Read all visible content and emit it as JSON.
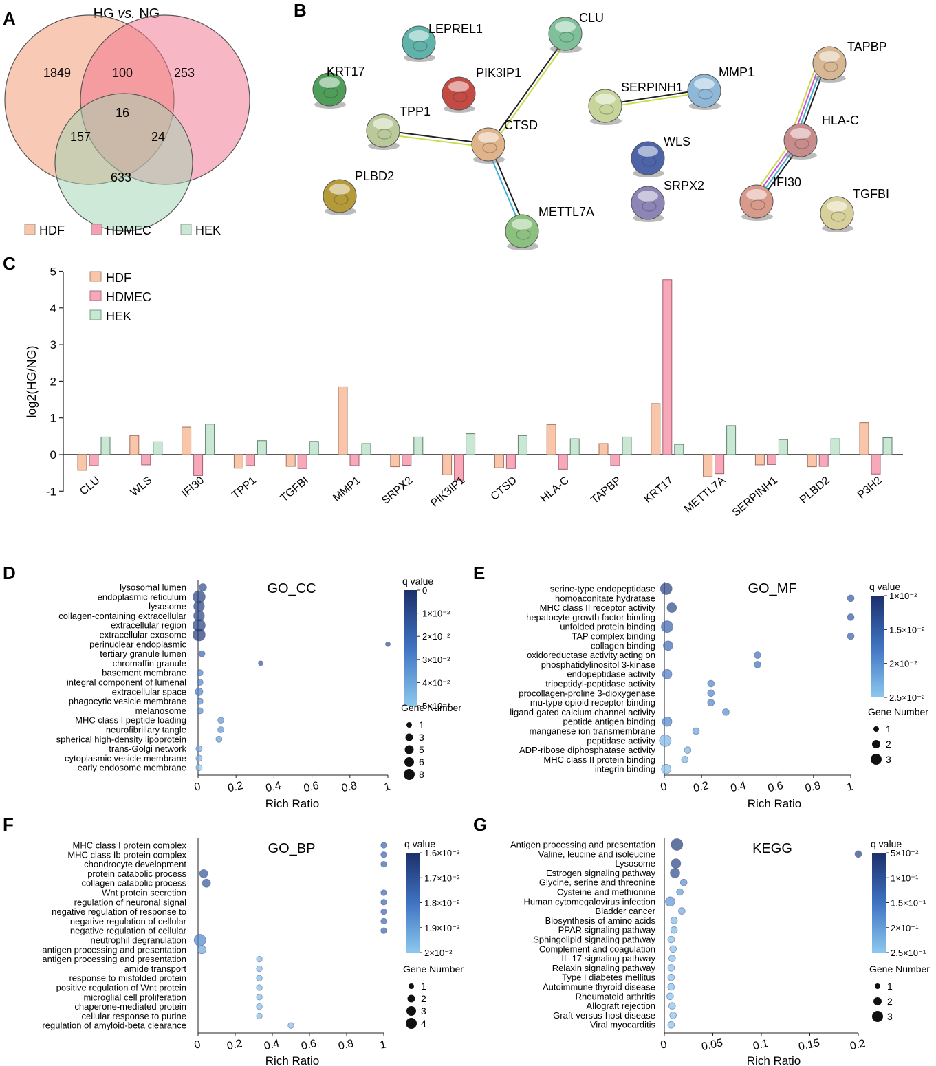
{
  "panels": {
    "A": {
      "label": "A",
      "title_prefix": "HG ",
      "title_italic": "vs.",
      "title_suffix": " NG",
      "regions": {
        "hdf_only": "1849",
        "hdf_hdmec": "100",
        "hdmec_only": "253",
        "all_three": "16",
        "hdf_hek": "157",
        "hdmec_hek": "24",
        "hek_only": "633"
      },
      "sets": [
        {
          "name": "HDF",
          "color": "#f4a582"
        },
        {
          "name": "HDMEC",
          "color": "#f28ba0"
        },
        {
          "name": "HEK",
          "color": "#9fd4b3"
        }
      ]
    },
    "B": {
      "label": "B",
      "nodes": [
        {
          "id": "LEPREL1",
          "color": "#5fb3a8"
        },
        {
          "id": "CLU",
          "color": "#7fc09a"
        },
        {
          "id": "KRT17",
          "color": "#4e9e5a"
        },
        {
          "id": "PIK3IP1",
          "color": "#c44b44"
        },
        {
          "id": "TPP1",
          "color": "#b9c99a"
        },
        {
          "id": "CTSD",
          "color": "#e0b48a"
        },
        {
          "id": "PLBD2",
          "color": "#b59a3a"
        },
        {
          "id": "METTL7A",
          "color": "#8cc07e"
        },
        {
          "id": "SERPINH1",
          "color": "#c7d49a"
        },
        {
          "id": "MMP1",
          "color": "#8fb8d8"
        },
        {
          "id": "WLS",
          "color": "#4d64a8"
        },
        {
          "id": "SRPX2",
          "color": "#8c85b5"
        },
        {
          "id": "TAPBP",
          "color": "#d8b892"
        },
        {
          "id": "HLA-C",
          "color": "#c98c8c"
        },
        {
          "id": "IFI30",
          "color": "#d89a8a"
        },
        {
          "id": "TGFBI",
          "color": "#d8d09a"
        }
      ]
    },
    "C": {
      "label": "C",
      "ylabel": "log2(HG/NG)",
      "yticks": [
        "5",
        "4",
        "3",
        "2",
        "1",
        "0",
        "-1"
      ]
    },
    "D": {
      "label": "D",
      "title": "GO_CC",
      "xlabel": "Rich Ratio",
      "legend": {
        "q_title": "q value",
        "q_ticks": [
          "0",
          "1×10⁻²",
          "2×10⁻²",
          "3×10⁻²",
          "4×10⁻²",
          "5×10⁻²"
        ],
        "gene_title": "Gene Number",
        "gene_ticks": [
          "1",
          "3",
          "5",
          "6",
          "8"
        ]
      }
    },
    "E": {
      "label": "E",
      "title": "GO_MF",
      "xlabel": "Rich Ratio",
      "legend": {
        "q_title": "q value",
        "q_ticks": [
          "1×10⁻²",
          "1.5×10⁻²",
          "2×10⁻²",
          "2.5×10⁻²"
        ],
        "gene_title": "Gene Number",
        "gene_ticks": [
          "1",
          "2",
          "3"
        ]
      }
    },
    "F": {
      "label": "F",
      "title": "GO_BP",
      "xlabel": "Rich Ratio",
      "legend": {
        "q_title": "q value",
        "q_ticks": [
          "1.6×10⁻²",
          "1.7×10⁻²",
          "1.8×10⁻²",
          "1.9×10⁻²",
          "2×10⁻²"
        ],
        "gene_title": "Gene Number",
        "gene_ticks": [
          "1",
          "2",
          "3",
          "4"
        ]
      }
    },
    "G": {
      "label": "G",
      "title": "KEGG",
      "xlabel": "Rich Ratio",
      "legend": {
        "q_title": "q value",
        "q_ticks": [
          "5×10⁻²",
          "1×10⁻¹",
          "1.5×10⁻¹",
          "2×10⁻¹",
          "2.5×10⁻¹"
        ],
        "gene_title": "Gene Number",
        "gene_ticks": [
          "1",
          "2",
          "3"
        ]
      }
    }
  },
  "chart_data": [
    {
      "id": "C",
      "type": "bar",
      "title": "",
      "xlabel": "",
      "ylabel": "log2(HG/NG)",
      "ylim": [
        -1,
        5
      ],
      "categories": [
        "CLU",
        "WLS",
        "IFI30",
        "TPP1",
        "TGFBI",
        "MMP1",
        "SRPX2",
        "PIK3IP1",
        "CTSD",
        "HLA-C",
        "TAPBP",
        "KRT17",
        "METTL7A",
        "SERPINH1",
        "PLBD2",
        "P3H2"
      ],
      "series": [
        {
          "name": "HDF",
          "color": "#f9c6a9",
          "values": [
            -0.43,
            0.52,
            0.75,
            -0.37,
            -0.32,
            1.85,
            -0.33,
            -0.55,
            -0.36,
            0.82,
            0.3,
            1.39,
            -0.6,
            -0.28,
            -0.33,
            0.87
          ]
        },
        {
          "name": "HDMEC",
          "color": "#f7a9b9",
          "values": [
            -0.3,
            -0.28,
            -0.57,
            -0.3,
            -0.38,
            -0.3,
            -0.29,
            -0.7,
            -0.38,
            -0.4,
            -0.3,
            4.77,
            -0.52,
            -0.27,
            -0.32,
            -0.53
          ]
        },
        {
          "name": "HEK",
          "color": "#c8e8d3",
          "values": [
            0.48,
            0.35,
            0.83,
            0.38,
            0.36,
            0.3,
            0.48,
            0.57,
            0.52,
            0.43,
            0.48,
            0.28,
            0.79,
            0.41,
            0.43,
            0.46
          ]
        }
      ]
    },
    {
      "id": "D",
      "type": "scatter",
      "title": "GO_CC",
      "xlabel": "Rich Ratio",
      "xlim": [
        0,
        1
      ],
      "xticks": [
        "0",
        "0.2",
        "0.4",
        "0.6",
        "0.8",
        "1"
      ],
      "categories": [
        "lysosomal lumen",
        "endoplasmic reticulum",
        "lysosome",
        "collagen-containing extracellular",
        "extracellular region",
        "extracellular exosome",
        "perinuclear endoplasmic",
        "tertiary granule lumen",
        "chromaffin granule",
        "basement membrane",
        "integral component of lumenal",
        "extracellular space",
        "phagocytic vesicle membrane",
        "melanosome",
        "MHC class I peptide loading",
        "neurofibrillary tangle",
        "spherical high-density lipoprotein",
        "trans-Golgi network",
        "cytoplasmic vesicle membrane",
        "early endosome membrane"
      ],
      "x": [
        0.025,
        0.005,
        0.005,
        0.005,
        0.005,
        0.005,
        1.0,
        0.02,
        0.33,
        0.01,
        0.01,
        0.005,
        0.01,
        0.01,
        0.12,
        0.12,
        0.11,
        0.005,
        0.005,
        0.005
      ],
      "gene_number": [
        3,
        8,
        6,
        6,
        8,
        8,
        1,
        2,
        1,
        2,
        2,
        3,
        2,
        2,
        2,
        2,
        2,
        2,
        2,
        2
      ],
      "q_value": [
        0.01,
        0.005,
        0.005,
        0.006,
        0.005,
        0.003,
        0.012,
        0.02,
        0.015,
        0.03,
        0.03,
        0.03,
        0.033,
        0.033,
        0.035,
        0.035,
        0.038,
        0.042,
        0.045,
        0.05
      ],
      "q_range": [
        0,
        0.05
      ]
    },
    {
      "id": "E",
      "type": "scatter",
      "title": "GO_MF",
      "xlabel": "Rich Ratio",
      "xlim": [
        0,
        1
      ],
      "xticks": [
        "0",
        "0.2",
        "0.4",
        "0.6",
        "0.8",
        "1"
      ],
      "categories": [
        "serine-type endopeptidase",
        "homoaconitate hydratase",
        "MHC class II receptor activity",
        "hepatocyte growth factor binding",
        "unfolded protein binding",
        "TAP complex binding",
        "collagen binding",
        "oxidoreductase activity,acting on",
        "phosphatidylinositol 3-kinase",
        "endopeptidase activity",
        "tripeptidyl-peptidase activity",
        "procollagen-proline 3-dioxygenase",
        "mu-type opioid receptor binding",
        "ligand-gated calcium channel activity",
        "peptide antigen binding",
        "manganese ion transmembrane",
        "peptidase activity",
        "ADP-ribose diphosphatase activity",
        "MHC class II protein binding",
        "integrin binding"
      ],
      "x": [
        0.01,
        1.0,
        0.04,
        1.0,
        0.015,
        1.0,
        0.02,
        0.5,
        0.5,
        0.015,
        0.25,
        0.25,
        0.25,
        0.33,
        0.015,
        0.17,
        0.005,
        0.125,
        0.11,
        0.01
      ],
      "gene_number": [
        3,
        1,
        2,
        1,
        3,
        1,
        2,
        1,
        1,
        2,
        1,
        1,
        1,
        1,
        2,
        1,
        3,
        1,
        1,
        2
      ],
      "q_value": [
        0.011,
        0.014,
        0.012,
        0.014,
        0.015,
        0.015,
        0.016,
        0.017,
        0.017,
        0.018,
        0.019,
        0.019,
        0.019,
        0.02,
        0.019,
        0.022,
        0.024,
        0.024,
        0.024,
        0.025
      ],
      "q_range": [
        0.009,
        0.026
      ]
    },
    {
      "id": "F",
      "type": "scatter",
      "title": "GO_BP",
      "xlabel": "Rich Ratio",
      "xlim": [
        0,
        1
      ],
      "xticks": [
        "0",
        "0.2",
        "0.4",
        "0.6",
        "0.8",
        "1"
      ],
      "categories": [
        "MHC class I protein complex",
        "MHC class Ib protein complex",
        "chondrocyte development",
        "protein catabolic process",
        "collagen catabolic process",
        "Wnt protein secretion",
        "regulation of neuronal signal",
        "negative regulation of response to",
        "negative regulation of cellular",
        "negative regulation of cellular",
        "neutrophil degranulation",
        "antigen processing and presentation",
        "antigen processing and presentation",
        "amide transport",
        "response to misfolded protein",
        "positive regulation of Wnt protein",
        "microglial cell proliferation",
        "chaperone-mediated protein",
        "cellular response to purine",
        "regulation of amyloid-beta clearance"
      ],
      "x": [
        1.0,
        1.0,
        1.0,
        0.03,
        0.045,
        1.0,
        1.0,
        1.0,
        1.0,
        1.0,
        0.01,
        0.02,
        0.33,
        0.33,
        0.33,
        0.33,
        0.33,
        0.33,
        0.33,
        0.5
      ],
      "gene_number": [
        1,
        1,
        1,
        2,
        2,
        1,
        1,
        1,
        1,
        1,
        4,
        2,
        1,
        1,
        1,
        1,
        1,
        1,
        1,
        1
      ],
      "q_value": [
        0.0175,
        0.0175,
        0.0175,
        0.0168,
        0.0168,
        0.0175,
        0.0175,
        0.0175,
        0.0175,
        0.0175,
        0.0185,
        0.0195,
        0.0202,
        0.0202,
        0.0202,
        0.0202,
        0.0202,
        0.0202,
        0.0202,
        0.0202
      ],
      "q_range": [
        0.0155,
        0.0205
      ]
    },
    {
      "id": "G",
      "type": "scatter",
      "title": "KEGG",
      "xlabel": "Rich Ratio",
      "xlim": [
        0,
        0.2
      ],
      "xticks": [
        "0",
        "0.05",
        "0.1",
        "0.15",
        "0.2"
      ],
      "categories": [
        "Antigen processing and presentation",
        "Valine, leucine and isoleucine",
        "Lysosome",
        "Estrogen signaling pathway",
        "Glycine, serine and threonine",
        "Cysteine and methionine",
        "Human cytomegalovirus infection",
        "Bladder cancer",
        "Biosynthesis of amino acids",
        "PPAR signaling pathway",
        "Sphingolipid signaling pathway",
        "Complement and coagulation",
        "IL-17 signaling pathway",
        "Relaxin signaling pathway",
        "Type I diabetes mellitus",
        "Autoimmune thyroid disease",
        "Rheumatoid arthritis",
        "Allograft rejection",
        "Graft-versus-host disease",
        "Viral myocarditis"
      ],
      "x": [
        0.013,
        0.2,
        0.012,
        0.011,
        0.02,
        0.016,
        0.006,
        0.018,
        0.01,
        0.01,
        0.007,
        0.009,
        0.008,
        0.007,
        0.007,
        0.007,
        0.006,
        0.008,
        0.009,
        0.007
      ],
      "gene_number": [
        3,
        1,
        2,
        2,
        1,
        1,
        2,
        1,
        1,
        1,
        1,
        1,
        1,
        1,
        1,
        1,
        1,
        1,
        1,
        1
      ],
      "q_value": [
        0.05,
        0.06,
        0.06,
        0.07,
        0.18,
        0.2,
        0.19,
        0.22,
        0.24,
        0.24,
        0.25,
        0.25,
        0.25,
        0.25,
        0.25,
        0.25,
        0.25,
        0.25,
        0.25,
        0.25
      ],
      "q_range": [
        0.03,
        0.26
      ]
    }
  ]
}
